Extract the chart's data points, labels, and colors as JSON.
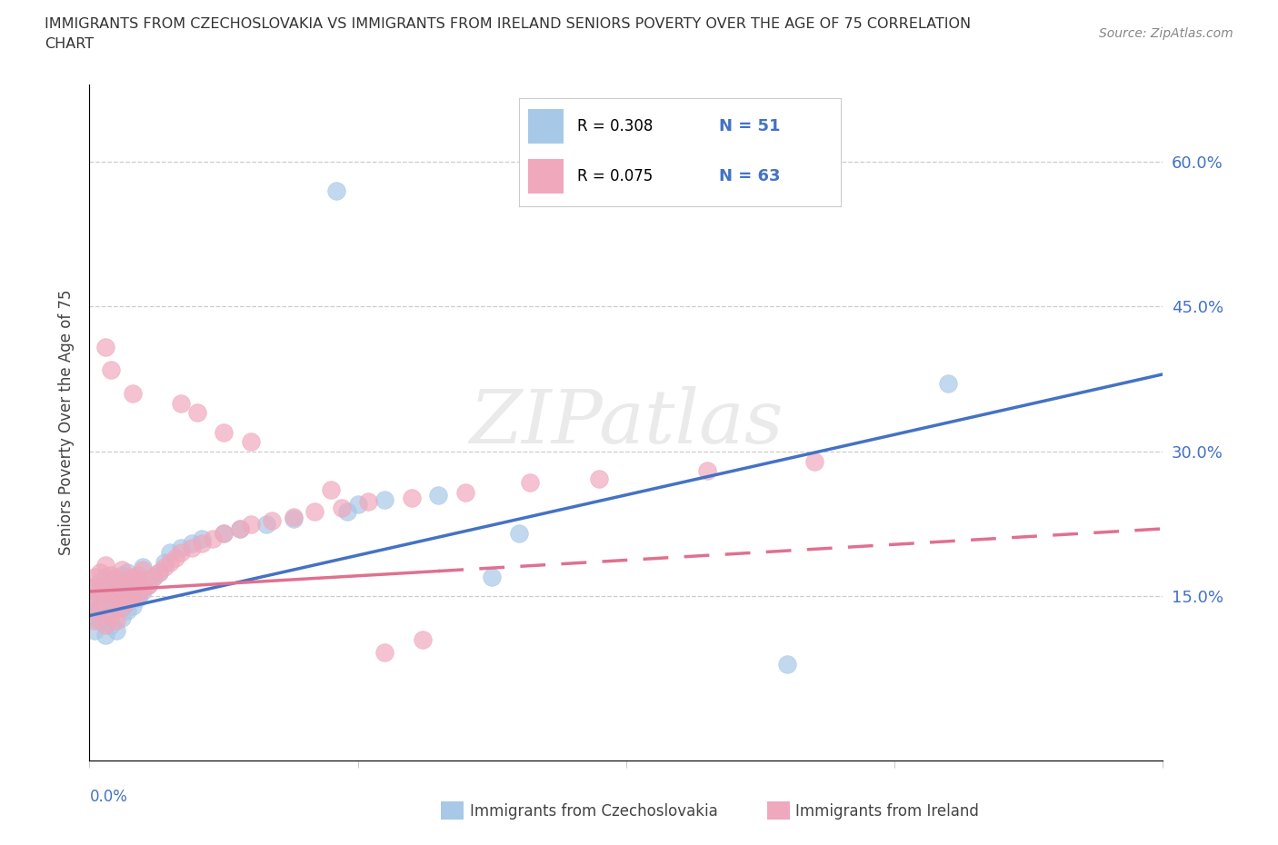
{
  "title_line1": "IMMIGRANTS FROM CZECHOSLOVAKIA VS IMMIGRANTS FROM IRELAND SENIORS POVERTY OVER THE AGE OF 75 CORRELATION",
  "title_line2": "CHART",
  "source": "Source: ZipAtlas.com",
  "ylabel": "Seniors Poverty Over the Age of 75",
  "ytick_labels": [
    "15.0%",
    "30.0%",
    "45.0%",
    "60.0%"
  ],
  "ytick_vals": [
    0.15,
    0.3,
    0.45,
    0.6
  ],
  "xlim": [
    0.0,
    0.2
  ],
  "ylim": [
    -0.02,
    0.68
  ],
  "color_czech": "#A8C8E8",
  "color_ireland": "#F0A8BC",
  "line_color_czech": "#4472C4",
  "line_color_ireland": "#E07090",
  "watermark_text": "ZIPatlas",
  "legend_items": [
    {
      "label": "R = 0.308   N = 51",
      "color": "#A8C8E8"
    },
    {
      "label": "R = 0.075   N = 63",
      "color": "#F0A8BC"
    }
  ],
  "bottom_legend": [
    {
      "label": "Immigrants from Czechoslovakia",
      "color": "#A8C8E8"
    },
    {
      "label": "Immigrants from Ireland",
      "color": "#F0A8BC"
    }
  ],
  "czech_x": [
    0.0,
    0.0,
    0.001,
    0.001,
    0.001,
    0.002,
    0.002,
    0.002,
    0.003,
    0.003,
    0.003,
    0.003,
    0.004,
    0.004,
    0.004,
    0.005,
    0.005,
    0.005,
    0.006,
    0.006,
    0.006,
    0.007,
    0.007,
    0.007,
    0.008,
    0.008,
    0.009,
    0.009,
    0.01,
    0.01,
    0.011,
    0.012,
    0.013,
    0.014,
    0.015,
    0.017,
    0.019,
    0.021,
    0.025,
    0.028,
    0.033,
    0.038,
    0.046,
    0.05,
    0.055,
    0.065,
    0.075,
    0.08,
    0.13,
    0.16,
    0.048
  ],
  "czech_y": [
    0.13,
    0.145,
    0.115,
    0.135,
    0.16,
    0.125,
    0.14,
    0.165,
    0.11,
    0.13,
    0.15,
    0.17,
    0.12,
    0.145,
    0.165,
    0.115,
    0.138,
    0.16,
    0.128,
    0.148,
    0.172,
    0.135,
    0.155,
    0.175,
    0.14,
    0.165,
    0.148,
    0.168,
    0.155,
    0.18,
    0.162,
    0.17,
    0.175,
    0.185,
    0.195,
    0.2,
    0.205,
    0.21,
    0.215,
    0.22,
    0.225,
    0.23,
    0.57,
    0.245,
    0.25,
    0.255,
    0.17,
    0.215,
    0.08,
    0.37,
    0.238
  ],
  "ireland_x": [
    0.0,
    0.0,
    0.001,
    0.001,
    0.001,
    0.002,
    0.002,
    0.002,
    0.003,
    0.003,
    0.003,
    0.003,
    0.004,
    0.004,
    0.004,
    0.005,
    0.005,
    0.005,
    0.006,
    0.006,
    0.006,
    0.007,
    0.007,
    0.008,
    0.008,
    0.009,
    0.009,
    0.01,
    0.01,
    0.011,
    0.012,
    0.013,
    0.014,
    0.015,
    0.016,
    0.017,
    0.019,
    0.021,
    0.023,
    0.025,
    0.028,
    0.03,
    0.034,
    0.038,
    0.042,
    0.047,
    0.052,
    0.06,
    0.07,
    0.082,
    0.095,
    0.115,
    0.135,
    0.025,
    0.03,
    0.017,
    0.02,
    0.008,
    0.004,
    0.003,
    0.055,
    0.045,
    0.062
  ],
  "ireland_y": [
    0.14,
    0.16,
    0.125,
    0.15,
    0.17,
    0.135,
    0.155,
    0.175,
    0.12,
    0.142,
    0.162,
    0.182,
    0.13,
    0.152,
    0.172,
    0.125,
    0.148,
    0.168,
    0.138,
    0.158,
    0.178,
    0.145,
    0.165,
    0.148,
    0.17,
    0.152,
    0.172,
    0.158,
    0.178,
    0.162,
    0.17,
    0.175,
    0.18,
    0.185,
    0.19,
    0.195,
    0.2,
    0.205,
    0.21,
    0.215,
    0.22,
    0.225,
    0.228,
    0.232,
    0.238,
    0.242,
    0.248,
    0.252,
    0.258,
    0.268,
    0.272,
    0.28,
    0.29,
    0.32,
    0.31,
    0.35,
    0.34,
    0.36,
    0.385,
    0.408,
    0.092,
    0.26,
    0.105
  ]
}
